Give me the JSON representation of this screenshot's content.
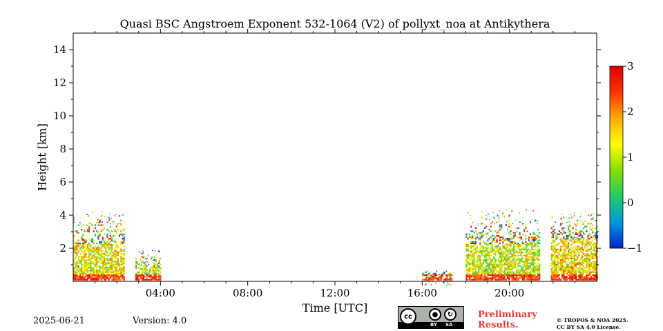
{
  "chart_data": {
    "type": "heatmap",
    "title": "Quasi BSC Angstroem Exponent 532-1064 (V2) of pollyxt_noa at Antikythera",
    "xlabel": "Time [UTC]",
    "ylabel": "Height [km]",
    "xlim": [
      0,
      24
    ],
    "ylim": [
      0,
      15
    ],
    "x_ticks": [
      4,
      8,
      12,
      16,
      20
    ],
    "x_tick_labels": [
      "04:00",
      "08:00",
      "12:00",
      "16:00",
      "20:00"
    ],
    "y_ticks": [
      2,
      4,
      6,
      8,
      10,
      12,
      14
    ],
    "y_tick_labels": [
      "2",
      "4",
      "6",
      "8",
      "10",
      "12",
      "14"
    ],
    "colorbar": {
      "range": [
        -1,
        3
      ],
      "ticks": [
        -1,
        0,
        1,
        2,
        3
      ],
      "tick_labels": [
        "−1",
        "0",
        "1",
        "2",
        "3"
      ],
      "colormap": [
        "#0022cc",
        "#0099dd",
        "#22cc66",
        "#88dd00",
        "#ffff00",
        "#ffaa00",
        "#ff3300",
        "#dd0000"
      ]
    },
    "data_segments": [
      {
        "start_h": 0.0,
        "end_h": 2.35,
        "top_km": 4.3,
        "dense_top_km": 2.2,
        "mean_value": 1.3
      },
      {
        "start_h": 2.85,
        "end_h": 4.0,
        "top_km": 1.9,
        "dense_top_km": 0.8,
        "mean_value": 1.0
      },
      {
        "start_h": 16.0,
        "end_h": 17.35,
        "top_km": 0.7,
        "dense_top_km": 0.4,
        "mean_value": 0.5
      },
      {
        "start_h": 18.0,
        "end_h": 21.4,
        "top_km": 4.4,
        "dense_top_km": 2.2,
        "mean_value": 1.1
      },
      {
        "start_h": 21.9,
        "end_h": 24.0,
        "top_km": 4.2,
        "dense_top_km": 2.5,
        "mean_value": 1.4
      }
    ]
  },
  "footer": {
    "date": "2025-06-21",
    "version": "Version: 4.0",
    "license_badge": {
      "cc": "cc",
      "by": "BY",
      "sa": "SA"
    },
    "preliminary_line1": "Preliminary",
    "preliminary_line2": "Results.",
    "copyright_line1": "© TROPOS & NOA 2025.",
    "copyright_line2": "CC BY SA 4.0 License."
  }
}
